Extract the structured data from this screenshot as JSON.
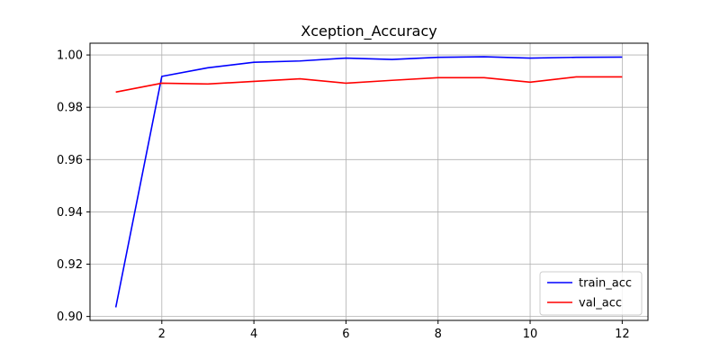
{
  "chart_data": {
    "type": "line",
    "title": "Xception_Accuracy",
    "xlabel": "",
    "ylabel": "",
    "x": [
      1,
      2,
      3,
      4,
      5,
      6,
      7,
      8,
      9,
      10,
      11,
      12
    ],
    "xlim": [
      0.44,
      12.56
    ],
    "ylim": [
      0.8985,
      1.0045
    ],
    "xticks": [
      2,
      4,
      6,
      8,
      10,
      12
    ],
    "yticks": [
      0.9,
      0.92,
      0.94,
      0.96,
      0.98,
      1.0
    ],
    "xtick_labels": [
      "2",
      "4",
      "6",
      "8",
      "10",
      "12"
    ],
    "ytick_labels": [
      "0.90",
      "0.92",
      "0.94",
      "0.96",
      "0.98",
      "1.00"
    ],
    "grid": true,
    "legend_position": "lower-right",
    "series": [
      {
        "name": "train_acc",
        "color": "#0000ff",
        "values": [
          0.9035,
          0.9918,
          0.9951,
          0.9972,
          0.9977,
          0.9988,
          0.9983,
          0.9991,
          0.9993,
          0.9988,
          0.9991,
          0.9992
        ]
      },
      {
        "name": "val_acc",
        "color": "#ff0000",
        "values": [
          0.9858,
          0.9892,
          0.9889,
          0.9899,
          0.9909,
          0.9892,
          0.9903,
          0.9913,
          0.9913,
          0.9896,
          0.9916,
          0.9916
        ]
      }
    ]
  }
}
